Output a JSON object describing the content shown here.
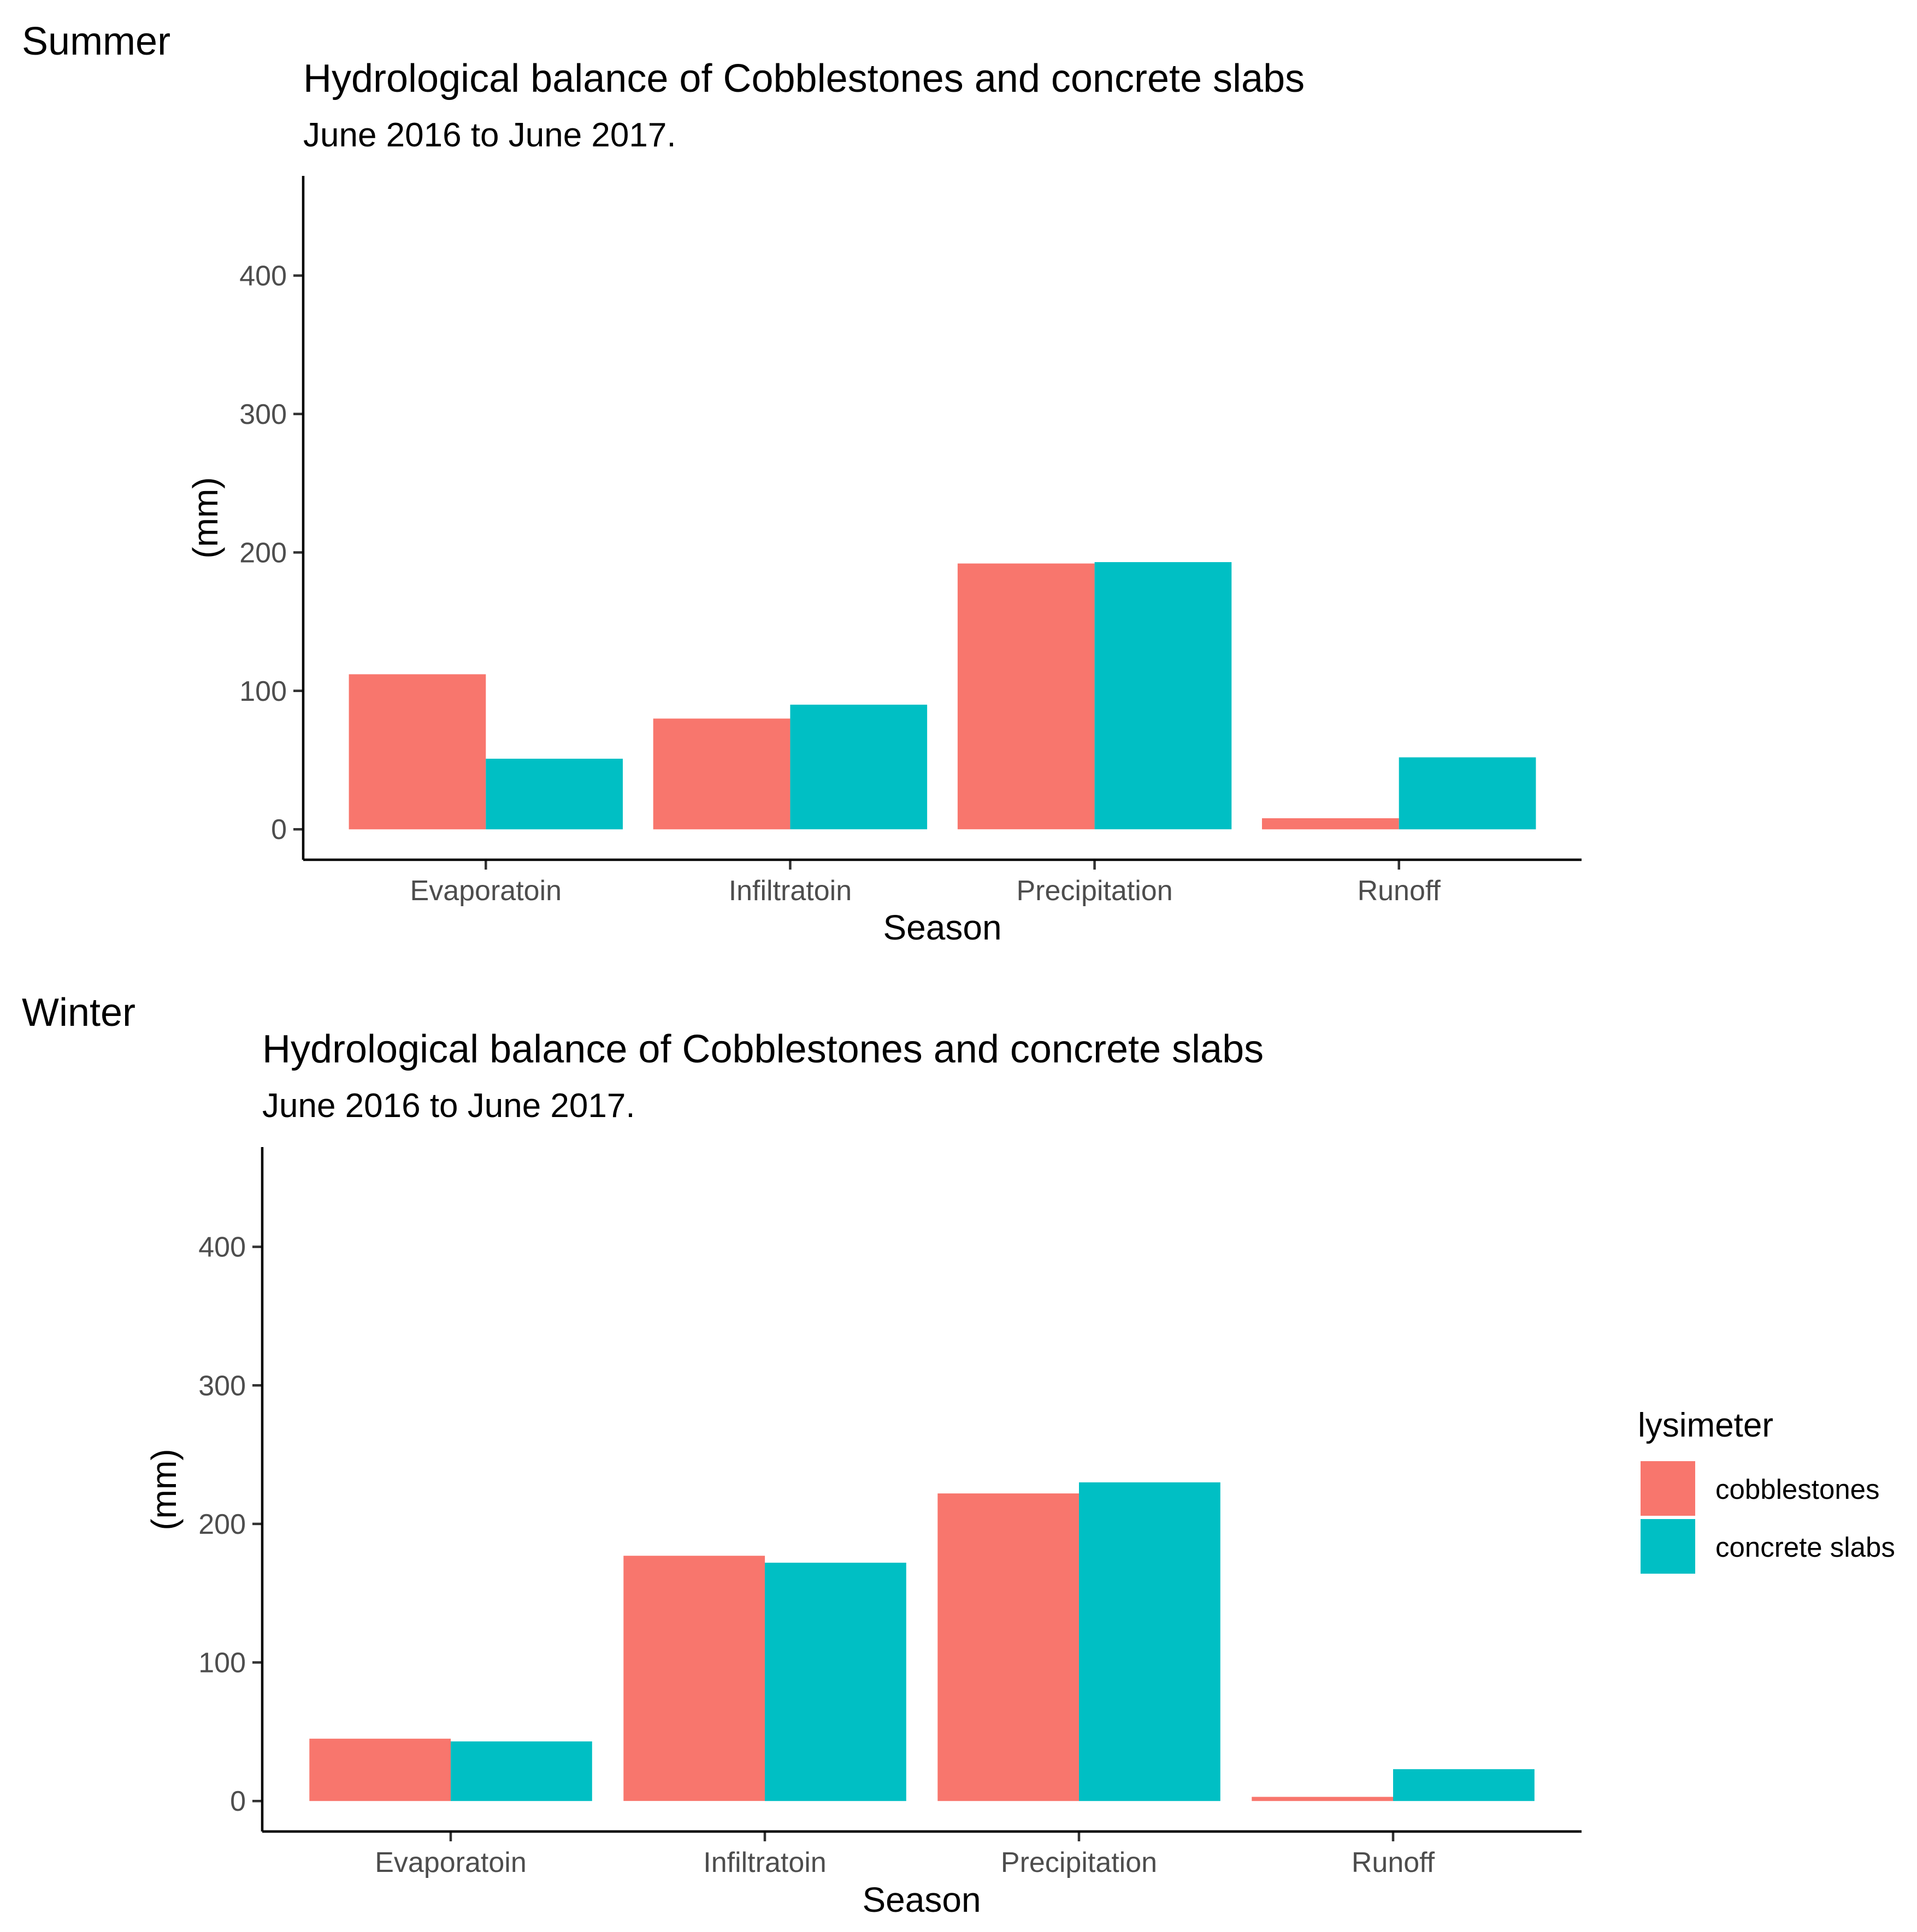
{
  "colors": {
    "cobblestones": "#F8766D",
    "concrete_slabs": "#00BFC4"
  },
  "legend": {
    "title": "lysimeter",
    "entries": [
      {
        "label": "cobblestones",
        "color": "#F8766D"
      },
      {
        "label": "concrete slabs",
        "color": "#00BFC4"
      }
    ]
  },
  "chart_data": [
    {
      "type": "bar",
      "panel": "Summer",
      "title": "Hydrological balance of Cobblestones and concrete slabs",
      "subtitle": "June 2016 to June 2017.",
      "xlabel": "Season",
      "ylabel": "(mm)",
      "categories": [
        "Evaporatoin",
        "Infiltratoin",
        "Precipitation",
        "Runoff"
      ],
      "series": [
        {
          "name": "cobblestones",
          "values": [
            112,
            80,
            192,
            8
          ]
        },
        {
          "name": "concrete slabs",
          "values": [
            51,
            90,
            193,
            52
          ]
        }
      ],
      "ylim": [
        -22,
        472
      ],
      "yticks": [
        0,
        100,
        200,
        300,
        400
      ],
      "grid": false
    },
    {
      "type": "bar",
      "panel": "Winter",
      "title": "Hydrological balance of Cobblestones and concrete slabs",
      "subtitle": "June 2016 to June 2017.",
      "xlabel": "Season",
      "ylabel": "(mm)",
      "categories": [
        "Evaporatoin",
        "Infiltratoin",
        "Precipitation",
        "Runoff"
      ],
      "series": [
        {
          "name": "cobblestones",
          "values": [
            45,
            177,
            222,
            3
          ]
        },
        {
          "name": "concrete slabs",
          "values": [
            43,
            172,
            230,
            23
          ]
        }
      ],
      "ylim": [
        -22,
        472
      ],
      "yticks": [
        0,
        100,
        200,
        300,
        400
      ],
      "grid": false
    }
  ]
}
